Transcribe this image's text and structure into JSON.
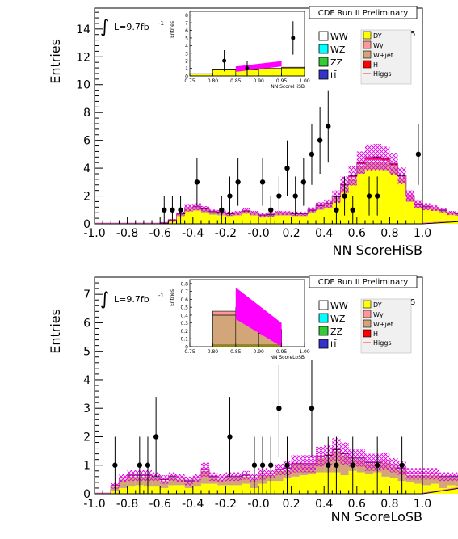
{
  "chart_data": [
    {
      "type": "bar",
      "panel_id": "top",
      "title": "CDF Run II Preliminary",
      "xlabel": "NN ScoreHiSB",
      "ylabel": "Entries",
      "xlim": [
        -1.0,
        1.0
      ],
      "ylim": [
        0,
        15.5
      ],
      "xticks": [
        "-1.0",
        "-0.8",
        "-0.6",
        "-0.4",
        "-0.2",
        "-0.0",
        "0.2",
        "0.4",
        "0.6",
        "0.8",
        "1.0"
      ],
      "yticks": [
        "0",
        "2",
        "4",
        "6",
        "8",
        "10",
        "12",
        "14"
      ],
      "lumi_label": "L=9.7fb",
      "lumi_sup": "-1",
      "mass_label": "m",
      "mass_sub": "H",
      "mass_value": "=115",
      "legend": [
        "WW",
        "WZ",
        "ZZ",
        "tt̄",
        "DY",
        "Wγ",
        "W+jet",
        "H",
        "Higgs"
      ],
      "bin_width": 0.05,
      "bin_start": -1.0,
      "series": [
        {
          "name": "DY",
          "color": "#ffff00",
          "values": [
            0,
            0,
            0,
            0,
            0,
            0,
            0,
            0,
            0.05,
            0.2,
            0.55,
            0.9,
            0.95,
            0.8,
            0.65,
            0.6,
            0.55,
            0.6,
            0.75,
            0.6,
            0.45,
            0.5,
            0.6,
            0.6,
            0.55,
            0.55,
            0.75,
            1.0,
            1.1,
            1.55,
            2.3,
            2.8,
            3.6,
            3.9,
            3.9,
            3.85,
            3.6,
            2.9,
            1.6,
            1.1,
            1.05,
            0.95,
            0.8,
            0.65,
            0.6,
            0.6,
            0.6,
            0.9,
            1.1,
            0.3
          ]
        },
        {
          "name": "W+jet",
          "color": "#d2a679",
          "values": [
            0,
            0,
            0,
            0,
            0,
            0,
            0,
            0,
            0,
            0.05,
            0.15,
            0.2,
            0.25,
            0.25,
            0.2,
            0.2,
            0.15,
            0.15,
            0.15,
            0.15,
            0.15,
            0.15,
            0.15,
            0.15,
            0.15,
            0.15,
            0.2,
            0.25,
            0.3,
            0.35,
            0.4,
            0.45,
            0.55,
            0.55,
            0.55,
            0.55,
            0.5,
            0.4,
            0.3,
            0.2,
            0.15,
            0.15,
            0.15,
            0.1,
            0.1,
            0.1,
            0.1,
            0.1,
            0.1,
            0.05
          ]
        },
        {
          "name": "WW",
          "color": "#ffffff",
          "values": [
            0,
            0,
            0,
            0,
            0,
            0,
            0,
            0,
            0,
            0,
            0.02,
            0.03,
            0.03,
            0.03,
            0.03,
            0.03,
            0.03,
            0.03,
            0.03,
            0.03,
            0.03,
            0.03,
            0.03,
            0.03,
            0.03,
            0.03,
            0.03,
            0.05,
            0.05,
            0.05,
            0.05,
            0.1,
            0.15,
            0.15,
            0.15,
            0.15,
            0.1,
            0.1,
            0.05,
            0.05,
            0.03,
            0.03,
            0.03,
            0.03,
            0.03,
            0.03,
            0.03,
            0.03,
            0.03,
            0.02
          ]
        },
        {
          "name": "H",
          "color": "#ff0000",
          "values": [
            0,
            0,
            0,
            0,
            0,
            0,
            0,
            0,
            0,
            0,
            0,
            0,
            0,
            0,
            0,
            0,
            0,
            0,
            0,
            0,
            0,
            0,
            0,
            0,
            0,
            0,
            0,
            0,
            0,
            0,
            0.05,
            0.1,
            0.1,
            0.15,
            0.2,
            0.15,
            0.1,
            0.05,
            0.05,
            0.05,
            0,
            0,
            0,
            0,
            0,
            0,
            0,
            0,
            0,
            0
          ]
        }
      ],
      "uncertainty": [
        0,
        0,
        0,
        0,
        0,
        0,
        0,
        0,
        0.05,
        0.1,
        0.15,
        0.25,
        0.25,
        0.2,
        0.15,
        0.15,
        0.15,
        0.15,
        0.2,
        0.15,
        0.15,
        0.15,
        0.15,
        0.15,
        0.15,
        0.15,
        0.2,
        0.25,
        0.3,
        0.45,
        0.6,
        0.7,
        0.8,
        0.95,
        0.95,
        0.85,
        0.8,
        0.6,
        0.4,
        0.25,
        0.25,
        0.2,
        0.15,
        0.15,
        0.15,
        0.15,
        0.15,
        0.2,
        0.2,
        0.1
      ],
      "data_points": [
        {
          "x": -0.575,
          "y": 1,
          "err": 1.0
        },
        {
          "x": -0.525,
          "y": 1,
          "err": 1.0
        },
        {
          "x": -0.475,
          "y": 1,
          "err": 1.0
        },
        {
          "x": -0.375,
          "y": 3,
          "err": 1.7
        },
        {
          "x": -0.225,
          "y": 1,
          "err": 1.0
        },
        {
          "x": -0.175,
          "y": 2,
          "err": 1.4
        },
        {
          "x": -0.125,
          "y": 3,
          "err": 1.7
        },
        {
          "x": 0.025,
          "y": 3,
          "err": 1.7
        },
        {
          "x": 0.075,
          "y": 1,
          "err": 1.0
        },
        {
          "x": 0.125,
          "y": 2,
          "err": 1.4
        },
        {
          "x": 0.175,
          "y": 4,
          "err": 2.0
        },
        {
          "x": 0.225,
          "y": 2,
          "err": 1.4
        },
        {
          "x": 0.275,
          "y": 3,
          "err": 1.7
        },
        {
          "x": 0.325,
          "y": 5,
          "err": 2.2
        },
        {
          "x": 0.375,
          "y": 6,
          "err": 2.4
        },
        {
          "x": 0.425,
          "y": 7,
          "err": 2.6
        },
        {
          "x": 0.475,
          "y": 1,
          "err": 1.0
        },
        {
          "x": 0.525,
          "y": 2,
          "err": 1.4
        },
        {
          "x": 0.575,
          "y": 1,
          "err": 1.0
        },
        {
          "x": 0.675,
          "y": 2,
          "err": 1.4
        },
        {
          "x": 0.725,
          "y": 2,
          "err": 1.4
        },
        {
          "x": 0.975,
          "y": 5,
          "err": 2.2
        }
      ],
      "inset": {
        "ylabel": "Entries",
        "xlabel": "NN ScoreHiSB",
        "xlim": [
          0.75,
          1.0
        ],
        "ylim": [
          0,
          8.5
        ],
        "xticks": [
          "0.75",
          "0.80",
          "0.85",
          "0.90",
          "0.95",
          "1.00"
        ],
        "yticks": [
          "0",
          "1",
          "2",
          "3",
          "4",
          "5",
          "6",
          "7",
          "8"
        ],
        "bins_x": [
          0.75,
          0.8,
          0.85,
          0.9,
          0.95,
          1.0
        ],
        "dy": [
          0.3,
          0.8,
          0.8,
          0.9,
          1.05
        ],
        "wjet": [
          0.0,
          0.05,
          0.1,
          0.1,
          0.1
        ],
        "signal": {
          "x": [
            0.85,
            0.95
          ],
          "y": [
            0.9,
            1.6
          ],
          "band": 0.35
        },
        "points": [
          {
            "x": 0.825,
            "y": 2,
            "err": 1.4
          },
          {
            "x": 0.875,
            "y": 1,
            "err": 1.0
          },
          {
            "x": 0.975,
            "y": 5,
            "err": 2.2
          }
        ]
      }
    },
    {
      "type": "bar",
      "panel_id": "bottom",
      "title": "CDF Run II Preliminary",
      "xlabel": "NN ScoreLoSB",
      "ylabel": "Entries",
      "xlim": [
        -1.0,
        1.0
      ],
      "ylim": [
        0,
        7.6
      ],
      "xticks": [
        "-1.0",
        "-0.8",
        "-0.6",
        "-0.4",
        "-0.2",
        "-0.0",
        "0.2",
        "0.4",
        "0.6",
        "0.8",
        "1.0"
      ],
      "yticks": [
        "0",
        "1",
        "2",
        "3",
        "4",
        "5",
        "6",
        "7"
      ],
      "lumi_label": "L=9.7fb",
      "lumi_sup": "-1",
      "mass_label": "m",
      "mass_sub": "H",
      "mass_value": "=115",
      "legend": [
        "WW",
        "WZ",
        "ZZ",
        "tt̄",
        "DY",
        "Wγ",
        "W+jet",
        "H",
        "Higgs"
      ],
      "bin_width": 0.05,
      "bin_start": -1.0,
      "series": [
        {
          "name": "DY",
          "color": "#ffff00",
          "values": [
            0,
            0,
            0.1,
            0.2,
            0.25,
            0.3,
            0.25,
            0.25,
            0.2,
            0.3,
            0.3,
            0.2,
            0.25,
            0.35,
            0.35,
            0.3,
            0.3,
            0.3,
            0.35,
            0.2,
            0.35,
            0.45,
            0.45,
            0.55,
            0.6,
            0.65,
            0.7,
            0.75,
            0.75,
            0.75,
            0.65,
            0.8,
            0.75,
            0.7,
            0.75,
            0.6,
            0.55,
            0.45,
            0.4,
            0.35,
            0.3,
            0.35,
            0.2,
            0.3,
            0.25,
            0.2,
            0.2,
            0.2,
            0.15,
            0.1
          ]
        },
        {
          "name": "W+jet",
          "color": "#d2a679",
          "values": [
            0,
            0,
            0.15,
            0.3,
            0.35,
            0.3,
            0.35,
            0.3,
            0.25,
            0.25,
            0.2,
            0.2,
            0.25,
            0.45,
            0.2,
            0.2,
            0.25,
            0.25,
            0.25,
            0.3,
            0.3,
            0.2,
            0.35,
            0.3,
            0.4,
            0.35,
            0.3,
            0.5,
            0.55,
            0.75,
            0.7,
            0.4,
            0.45,
            0.35,
            0.3,
            0.5,
            0.4,
            0.4,
            0.25,
            0.3,
            0.35,
            0.3,
            0.35,
            0.25,
            0.3,
            0.3,
            0.45,
            0.3,
            0.35,
            0.3
          ]
        },
        {
          "name": "WW",
          "color": "#ffffff",
          "values": [
            0,
            0,
            0.03,
            0.05,
            0.05,
            0.05,
            0.05,
            0.05,
            0.05,
            0.05,
            0.05,
            0.05,
            0.05,
            0.05,
            0.05,
            0.05,
            0.05,
            0.05,
            0.05,
            0.05,
            0.05,
            0.05,
            0.05,
            0.05,
            0.05,
            0.05,
            0.05,
            0.05,
            0.05,
            0.05,
            0.05,
            0.05,
            0.05,
            0.05,
            0.05,
            0.05,
            0.05,
            0.05,
            0.05,
            0.05,
            0.05,
            0.05,
            0.05,
            0.05,
            0.05,
            0.05,
            0.05,
            0.05,
            0.05,
            0.03
          ]
        },
        {
          "name": "H",
          "color": "#ff0000",
          "values": [
            0,
            0,
            0,
            0,
            0,
            0,
            0,
            0,
            0,
            0,
            0,
            0,
            0,
            0,
            0,
            0,
            0,
            0,
            0,
            0,
            0,
            0,
            0,
            0,
            0,
            0,
            0,
            0,
            0,
            0,
            0,
            0,
            0,
            0,
            0,
            0,
            0,
            0,
            0,
            0,
            0,
            0,
            0,
            0,
            0,
            0,
            0,
            0,
            0,
            0
          ]
        }
      ],
      "uncertainty": [
        0,
        0,
        0.1,
        0.15,
        0.2,
        0.2,
        0.2,
        0.15,
        0.15,
        0.15,
        0.15,
        0.15,
        0.15,
        0.25,
        0.15,
        0.15,
        0.15,
        0.15,
        0.15,
        0.15,
        0.2,
        0.15,
        0.2,
        0.25,
        0.3,
        0.3,
        0.3,
        0.35,
        0.35,
        0.4,
        0.4,
        0.3,
        0.3,
        0.3,
        0.3,
        0.3,
        0.25,
        0.25,
        0.2,
        0.2,
        0.2,
        0.2,
        0.15,
        0.15,
        0.15,
        0.15,
        0.2,
        0.15,
        0.15,
        0.1
      ],
      "data_points": [
        {
          "x": -0.875,
          "y": 1,
          "err": 1.0
        },
        {
          "x": -0.725,
          "y": 1,
          "err": 1.0
        },
        {
          "x": -0.675,
          "y": 1,
          "err": 1.0
        },
        {
          "x": -0.625,
          "y": 2,
          "err": 1.4
        },
        {
          "x": -0.175,
          "y": 2,
          "err": 1.4
        },
        {
          "x": -0.025,
          "y": 1,
          "err": 1.0
        },
        {
          "x": 0.025,
          "y": 1,
          "err": 1.0
        },
        {
          "x": 0.075,
          "y": 1,
          "err": 1.0
        },
        {
          "x": 0.125,
          "y": 3,
          "err": 1.7
        },
        {
          "x": 0.175,
          "y": 1,
          "err": 1.0
        },
        {
          "x": 0.325,
          "y": 3,
          "err": 1.7
        },
        {
          "x": 0.425,
          "y": 1,
          "err": 1.0
        },
        {
          "x": 0.475,
          "y": 1,
          "err": 1.0
        },
        {
          "x": 0.575,
          "y": 1,
          "err": 1.0
        },
        {
          "x": 0.725,
          "y": 1,
          "err": 1.0
        },
        {
          "x": 0.875,
          "y": 1,
          "err": 1.0
        }
      ],
      "inset": {
        "ylabel": "Entries",
        "xlabel": "NN ScoreLoSB",
        "xlim": [
          0.75,
          1.0
        ],
        "ylim": [
          0,
          0.85
        ],
        "xticks": [
          "0.75",
          "0.80",
          "0.85",
          "0.90",
          "0.95",
          "1.00"
        ],
        "yticks": [
          "0",
          "0.1",
          "0.2",
          "0.3",
          "0.4",
          "0.5",
          "0.6",
          "0.7",
          "0.8"
        ],
        "bins_x": [
          0.75,
          0.8,
          0.85,
          0.9,
          0.95,
          1.0
        ],
        "dy": [
          0.0,
          0.02,
          0.02,
          0.02,
          0.0
        ],
        "wjet": [
          0.0,
          0.38,
          0.4,
          0.15,
          0.0
        ],
        "wgamma": [
          0.0,
          0.05,
          0.08,
          0.05,
          0.0
        ],
        "signal": {
          "x": [
            0.85,
            0.95
          ],
          "y": [
            0.55,
            0.1
          ],
          "band": 0.2
        },
        "points": []
      }
    }
  ]
}
